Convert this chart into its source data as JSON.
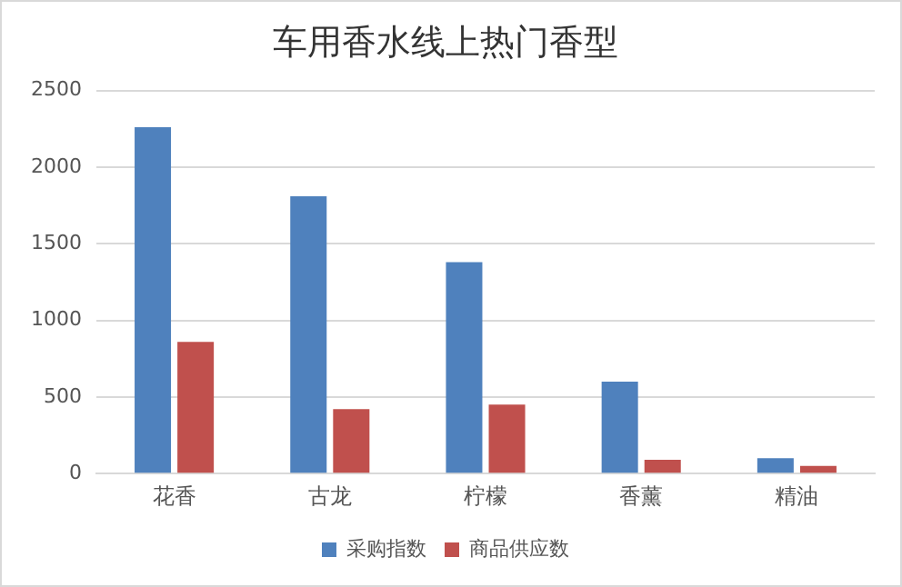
{
  "chart_data": {
    "type": "bar",
    "title": "车用香水线上热门香型",
    "categories": [
      "花香",
      "古龙",
      "柠檬",
      "香薰",
      "精油"
    ],
    "series": [
      {
        "name": "采购指数",
        "color": "#4f81bd",
        "values": [
          2260,
          1810,
          1380,
          600,
          100
        ]
      },
      {
        "name": "商品供应数",
        "color": "#c0504d",
        "values": [
          860,
          420,
          450,
          90,
          50
        ]
      }
    ],
    "ylim": [
      0,
      2500
    ],
    "yticks": [
      0,
      500,
      1000,
      1500,
      2000,
      2500
    ],
    "grid": "y",
    "legend": "bottom"
  }
}
